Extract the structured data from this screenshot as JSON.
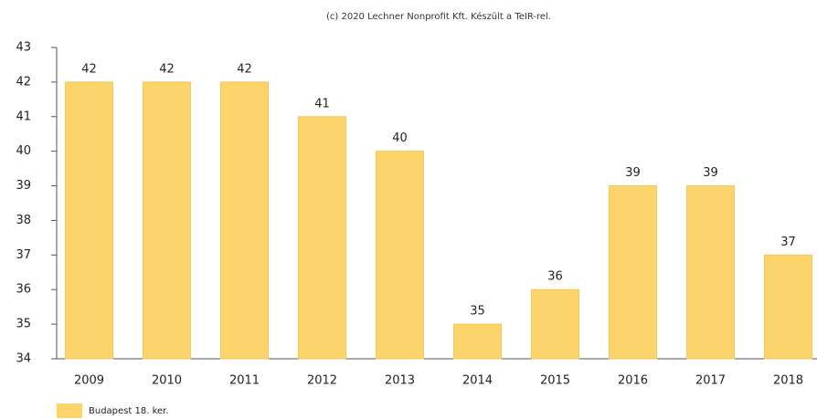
{
  "chart_data": {
    "type": "bar",
    "title": "(c) 2020 Lechner Nonprofit Kft. Készült a TeIR-rel.",
    "categories": [
      "2009",
      "2010",
      "2011",
      "2012",
      "2013",
      "2014",
      "2015",
      "2016",
      "2017",
      "2018"
    ],
    "series": [
      {
        "name": "Budapest 18. ker.",
        "color": "#fbd56c",
        "values": [
          42,
          42,
          42,
          41,
          40,
          35,
          36,
          39,
          39,
          37
        ]
      }
    ],
    "ylim": [
      34,
      43
    ],
    "yticks": [
      34,
      35,
      36,
      37,
      38,
      39,
      40,
      41,
      42,
      43
    ],
    "grid": false,
    "legend": "bottom-left"
  }
}
